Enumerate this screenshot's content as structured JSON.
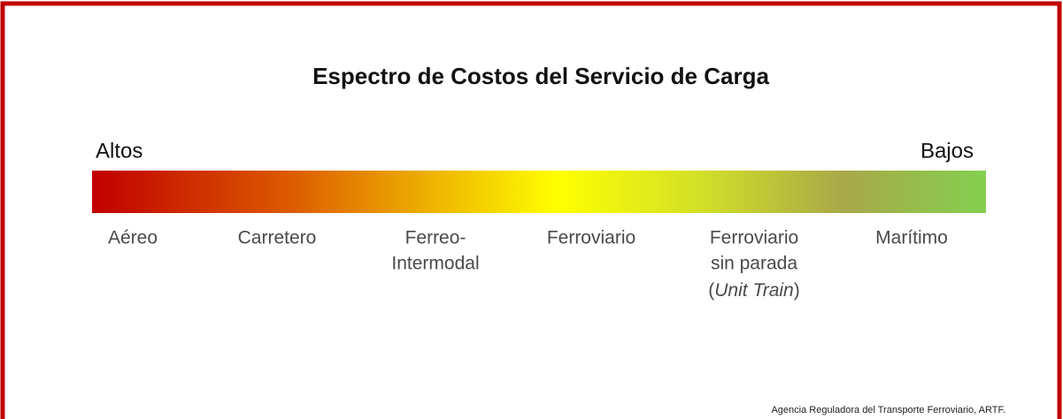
{
  "title": "Espectro de Costos del Servicio de Carga",
  "scale": {
    "left": "Altos",
    "right": "Bajos"
  },
  "items": [
    {
      "lines": [
        "Aéreo"
      ]
    },
    {
      "lines": [
        "Carretero"
      ]
    },
    {
      "lines": [
        "Ferreo-",
        "Intermodal"
      ]
    },
    {
      "lines": [
        "Ferroviario"
      ]
    },
    {
      "lines": [
        "Ferroviario",
        "sin parada"
      ],
      "note": {
        "open": "(",
        "italic": "Unit Train",
        "close": ")"
      }
    },
    {
      "lines": [
        "Marítimo"
      ]
    }
  ],
  "source": "Agencia Reguladora del Transporte Ferroviario, ARTF."
}
